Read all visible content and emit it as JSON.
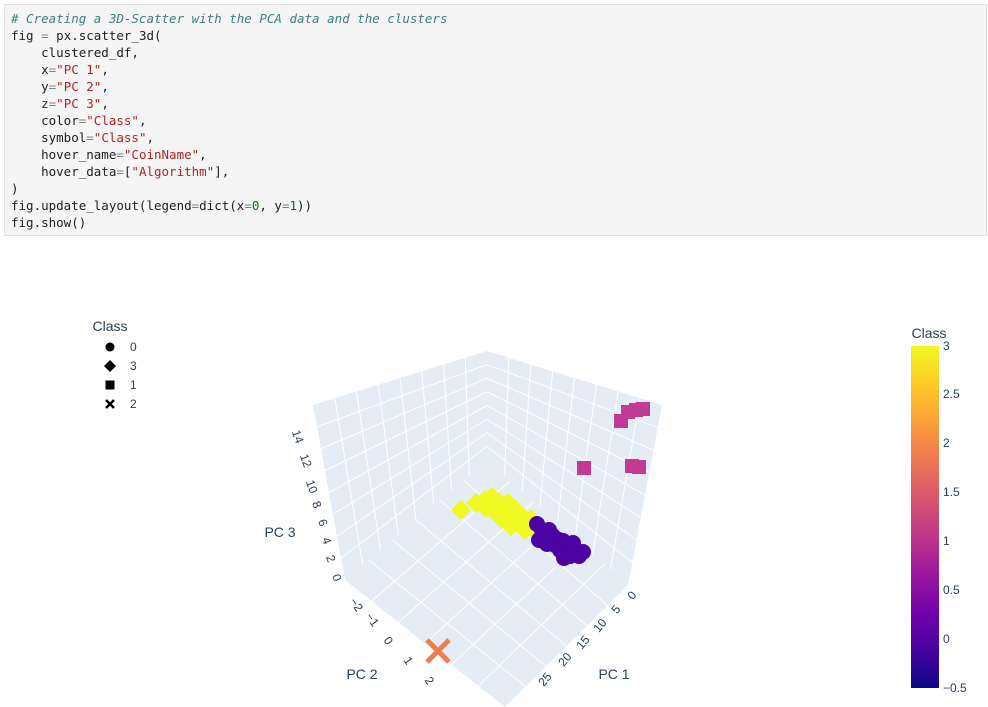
{
  "code_cell": {
    "lines": [
      [
        {
          "t": "comment",
          "v": "# Creating a 3D-Scatter with the PCA data and the clusters"
        }
      ],
      [
        {
          "t": "fn",
          "v": "fig "
        },
        {
          "t": "op",
          "v": "="
        },
        {
          "t": "fn",
          "v": " px.scatter_3d("
        }
      ],
      [
        {
          "t": "fn",
          "v": "    clustered_df,"
        }
      ],
      [
        {
          "t": "fn",
          "v": "    x"
        },
        {
          "t": "op",
          "v": "="
        },
        {
          "t": "str",
          "v": "\"PC 1\""
        },
        {
          "t": "fn",
          "v": ","
        }
      ],
      [
        {
          "t": "fn",
          "v": "    y"
        },
        {
          "t": "op",
          "v": "="
        },
        {
          "t": "str",
          "v": "\"PC 2\""
        },
        {
          "t": "fn",
          "v": ","
        }
      ],
      [
        {
          "t": "fn",
          "v": "    z"
        },
        {
          "t": "op",
          "v": "="
        },
        {
          "t": "str",
          "v": "\"PC 3\""
        },
        {
          "t": "fn",
          "v": ","
        }
      ],
      [
        {
          "t": "fn",
          "v": "    color"
        },
        {
          "t": "op",
          "v": "="
        },
        {
          "t": "str",
          "v": "\"Class\""
        },
        {
          "t": "fn",
          "v": ","
        }
      ],
      [
        {
          "t": "fn",
          "v": "    symbol"
        },
        {
          "t": "op",
          "v": "="
        },
        {
          "t": "str",
          "v": "\"Class\""
        },
        {
          "t": "fn",
          "v": ","
        }
      ],
      [
        {
          "t": "fn",
          "v": "    hover_name"
        },
        {
          "t": "op",
          "v": "="
        },
        {
          "t": "str",
          "v": "\"CoinName\""
        },
        {
          "t": "fn",
          "v": ","
        }
      ],
      [
        {
          "t": "fn",
          "v": "    hover_data"
        },
        {
          "t": "op",
          "v": "="
        },
        {
          "t": "fn",
          "v": "["
        },
        {
          "t": "str",
          "v": "\"Algorithm\""
        },
        {
          "t": "fn",
          "v": "],"
        }
      ],
      [
        {
          "t": "fn",
          "v": ")"
        }
      ],
      [
        {
          "t": "fn",
          "v": "fig.update_layout(legend"
        },
        {
          "t": "op",
          "v": "="
        },
        {
          "t": "fn",
          "v": "dict(x"
        },
        {
          "t": "op",
          "v": "="
        },
        {
          "t": "num",
          "v": "0"
        },
        {
          "t": "fn",
          "v": ", y"
        },
        {
          "t": "op",
          "v": "="
        },
        {
          "t": "num",
          "v": "1"
        },
        {
          "t": "fn",
          "v": "))"
        }
      ],
      [
        {
          "t": "fn",
          "v": "fig.show()"
        }
      ]
    ]
  },
  "legend": {
    "title": "Class",
    "items": [
      {
        "label": "0",
        "symbol": "circle"
      },
      {
        "label": "3",
        "symbol": "diamond"
      },
      {
        "label": "1",
        "symbol": "square"
      },
      {
        "label": "2",
        "symbol": "x"
      }
    ]
  },
  "colorbar": {
    "title": "Class",
    "ticks": [
      "3",
      "2.5",
      "2",
      "1.5",
      "1",
      "0.5",
      "0",
      "−0.5"
    ],
    "colors": [
      "#f0f921",
      "#fdca26",
      "#fb9f3a",
      "#ed7953",
      "#d8576b",
      "#bd3786",
      "#9c179e",
      "#7201a8",
      "#46039f",
      "#0d0887"
    ]
  },
  "chart_data": {
    "type": "scatter",
    "subtype": "3d",
    "xlabel": "PC 1",
    "ylabel": "PC 2",
    "zlabel": "PC 3",
    "x_ticks": [
      "0",
      "5",
      "10",
      "15",
      "20",
      "25"
    ],
    "y_ticks": [
      "−2",
      "−1",
      "0",
      "1",
      "2"
    ],
    "z_ticks": [
      "0",
      "2",
      "4",
      "6",
      "8",
      "10",
      "12",
      "14"
    ],
    "color_scale": "plasma",
    "series": [
      {
        "name": "0",
        "symbol": "circle",
        "color": "#4b03a1",
        "count_approx": 40
      },
      {
        "name": "3",
        "symbol": "diamond",
        "color": "#f0f921",
        "count_approx": 30
      },
      {
        "name": "1",
        "symbol": "square",
        "color": "#c13a93",
        "count_approx": 7
      },
      {
        "name": "2",
        "symbol": "x",
        "color": "#ef7f4d",
        "count_approx": 1
      }
    ]
  }
}
